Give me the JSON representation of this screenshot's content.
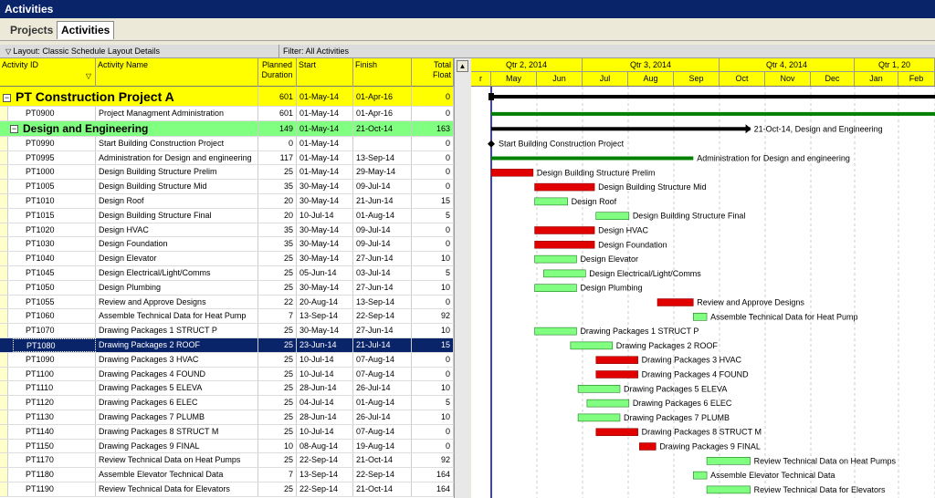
{
  "window": {
    "title": "Activities"
  },
  "tabs": [
    {
      "label": "Projects"
    },
    {
      "label": "Activities"
    }
  ],
  "toolbar": {
    "layout": "Layout: Classic Schedule Layout Details",
    "filter": "Filter: All Activities"
  },
  "columns": {
    "id": "Activity ID",
    "name": "Activity Name",
    "duration": "Planned Duration",
    "start": "Start",
    "finish": "Finish",
    "float": "Total Float"
  },
  "timescale": {
    "quarters": [
      "Qtr 2, 2014",
      "Qtr 3, 2014",
      "Qtr 4, 2014",
      "Qtr 1, 20"
    ],
    "months": [
      "r",
      "May",
      "Jun",
      "Jul",
      "Aug",
      "Sep",
      "Oct",
      "Nov",
      "Dec",
      "Jan",
      "Feb"
    ]
  },
  "rows": [
    {
      "type": "project",
      "id": "PT Construction Project A",
      "name": "",
      "dur": "601",
      "start": "01-May-14",
      "finish": "01-Apr-16",
      "float": "0"
    },
    {
      "type": "act",
      "id": "PT0900",
      "name": "Project Managment Administration",
      "dur": "601",
      "start": "01-May-14",
      "finish": "01-Apr-16",
      "float": "0"
    },
    {
      "type": "wbs",
      "id": "Design and Engineering",
      "name": "",
      "dur": "149",
      "start": "01-May-14",
      "finish": "21-Oct-14",
      "float": "163"
    },
    {
      "type": "act",
      "id": "PT0990",
      "name": "Start Building Construction Project",
      "dur": "0",
      "start": "01-May-14",
      "finish": "",
      "float": "0"
    },
    {
      "type": "act",
      "id": "PT0995",
      "name": "Administration for Design and engineering",
      "dur": "117",
      "start": "01-May-14",
      "finish": "13-Sep-14",
      "float": "0"
    },
    {
      "type": "act",
      "id": "PT1000",
      "name": "Design Building Structure Prelim",
      "dur": "25",
      "start": "01-May-14",
      "finish": "29-May-14",
      "float": "0"
    },
    {
      "type": "act",
      "id": "PT1005",
      "name": "Design Building Structure Mid",
      "dur": "35",
      "start": "30-May-14",
      "finish": "09-Jul-14",
      "float": "0"
    },
    {
      "type": "act",
      "id": "PT1010",
      "name": "Design Roof",
      "dur": "20",
      "start": "30-May-14",
      "finish": "21-Jun-14",
      "float": "15"
    },
    {
      "type": "act",
      "id": "PT1015",
      "name": "Design Building Structure Final",
      "dur": "20",
      "start": "10-Jul-14",
      "finish": "01-Aug-14",
      "float": "5"
    },
    {
      "type": "act",
      "id": "PT1020",
      "name": "Design HVAC",
      "dur": "35",
      "start": "30-May-14",
      "finish": "09-Jul-14",
      "float": "0"
    },
    {
      "type": "act",
      "id": "PT1030",
      "name": "Design Foundation",
      "dur": "35",
      "start": "30-May-14",
      "finish": "09-Jul-14",
      "float": "0"
    },
    {
      "type": "act",
      "id": "PT1040",
      "name": "Design Elevator",
      "dur": "25",
      "start": "30-May-14",
      "finish": "27-Jun-14",
      "float": "10"
    },
    {
      "type": "act",
      "id": "PT1045",
      "name": "Design Electrical/Light/Comms",
      "dur": "25",
      "start": "05-Jun-14",
      "finish": "03-Jul-14",
      "float": "5"
    },
    {
      "type": "act",
      "id": "PT1050",
      "name": "Design Plumbing",
      "dur": "25",
      "start": "30-May-14",
      "finish": "27-Jun-14",
      "float": "10"
    },
    {
      "type": "act",
      "id": "PT1055",
      "name": "Review and Approve Designs",
      "dur": "22",
      "start": "20-Aug-14",
      "finish": "13-Sep-14",
      "float": "0"
    },
    {
      "type": "act",
      "id": "PT1060",
      "name": "Assemble Technical Data for Heat Pump",
      "dur": "7",
      "start": "13-Sep-14",
      "finish": "22-Sep-14",
      "float": "92"
    },
    {
      "type": "act",
      "id": "PT1070",
      "name": "Drawing Packages 1 STRUCT P",
      "dur": "25",
      "start": "30-May-14",
      "finish": "27-Jun-14",
      "float": "10"
    },
    {
      "type": "act",
      "id": "PT1080",
      "name": "Drawing Packages 2 ROOF",
      "dur": "25",
      "start": "23-Jun-14",
      "finish": "21-Jul-14",
      "float": "15",
      "selected": true
    },
    {
      "type": "act",
      "id": "PT1090",
      "name": "Drawing Packages 3 HVAC",
      "dur": "25",
      "start": "10-Jul-14",
      "finish": "07-Aug-14",
      "float": "0"
    },
    {
      "type": "act",
      "id": "PT1100",
      "name": "Drawing Packages 4 FOUND",
      "dur": "25",
      "start": "10-Jul-14",
      "finish": "07-Aug-14",
      "float": "0"
    },
    {
      "type": "act",
      "id": "PT1110",
      "name": "Drawing Packages 5 ELEVA",
      "dur": "25",
      "start": "28-Jun-14",
      "finish": "26-Jul-14",
      "float": "10"
    },
    {
      "type": "act",
      "id": "PT1120",
      "name": "Drawing Packages 6 ELEC",
      "dur": "25",
      "start": "04-Jul-14",
      "finish": "01-Aug-14",
      "float": "5"
    },
    {
      "type": "act",
      "id": "PT1130",
      "name": "Drawing Packages 7 PLUMB",
      "dur": "25",
      "start": "28-Jun-14",
      "finish": "26-Jul-14",
      "float": "10"
    },
    {
      "type": "act",
      "id": "PT1140",
      "name": "Drawing Packages 8 STRUCT M",
      "dur": "25",
      "start": "10-Jul-14",
      "finish": "07-Aug-14",
      "float": "0"
    },
    {
      "type": "act",
      "id": "PT1150",
      "name": "Drawing Packages 9 FINAL",
      "dur": "10",
      "start": "08-Aug-14",
      "finish": "19-Aug-14",
      "float": "0"
    },
    {
      "type": "act",
      "id": "PT1170",
      "name": "Review Technical Data on Heat Pumps",
      "dur": "25",
      "start": "22-Sep-14",
      "finish": "21-Oct-14",
      "float": "92"
    },
    {
      "type": "act",
      "id": "PT1180",
      "name": "Assemble Elevator Technical Data",
      "dur": "7",
      "start": "13-Sep-14",
      "finish": "22-Sep-14",
      "float": "164"
    },
    {
      "type": "act",
      "id": "PT1190",
      "name": "Review Technical Data for Elevators",
      "dur": "25",
      "start": "22-Sep-14",
      "finish": "21-Oct-14",
      "float": "164"
    }
  ],
  "bar_labels": {
    "wbs_summary": "21-Oct-14, Design and Engineering",
    "milestone": "Start Building Construction Project",
    "admin": "Administration for Design and engineering",
    "prelim": "Design Building Structure Prelim",
    "mid": "Design Building Structure Mid",
    "roof": "Design Roof",
    "final": "Design Building Structure Final",
    "hvac": "Design HVAC",
    "found": "Design Foundation",
    "elev": "Design Elevator",
    "elec": "Design Electrical/Light/Comms",
    "plumb": "Design Plumbing",
    "review": "Review and Approve Designs",
    "heatpump": "Assemble Technical Data for Heat Pump",
    "dp1": "Drawing Packages 1 STRUCT P",
    "dp2": "Drawing Packages 2 ROOF",
    "dp3": "Drawing Packages 3 HVAC",
    "dp4": "Drawing Packages 4 FOUND",
    "dp5": "Drawing Packages 5 ELEVA",
    "dp6": "Drawing Packages 6 ELEC",
    "dp7": "Drawing Packages 7 PLUMB",
    "dp8": "Drawing Packages 8 STRUCT M",
    "dp9": "Drawing Packages 9 FINAL",
    "rev_hp": "Review Technical Data on Heat Pumps",
    "asm_elev": "Assemble Elevator Technical Data",
    "rev_elev": "Review Technical Data for Elevators"
  },
  "colors": {
    "critical": "#e00000",
    "normal": "#80ff80",
    "summary": "#000000",
    "project_band": "#008000",
    "header": "#ffff00",
    "wbs": "#80ff80",
    "selected": "#0a246a"
  }
}
